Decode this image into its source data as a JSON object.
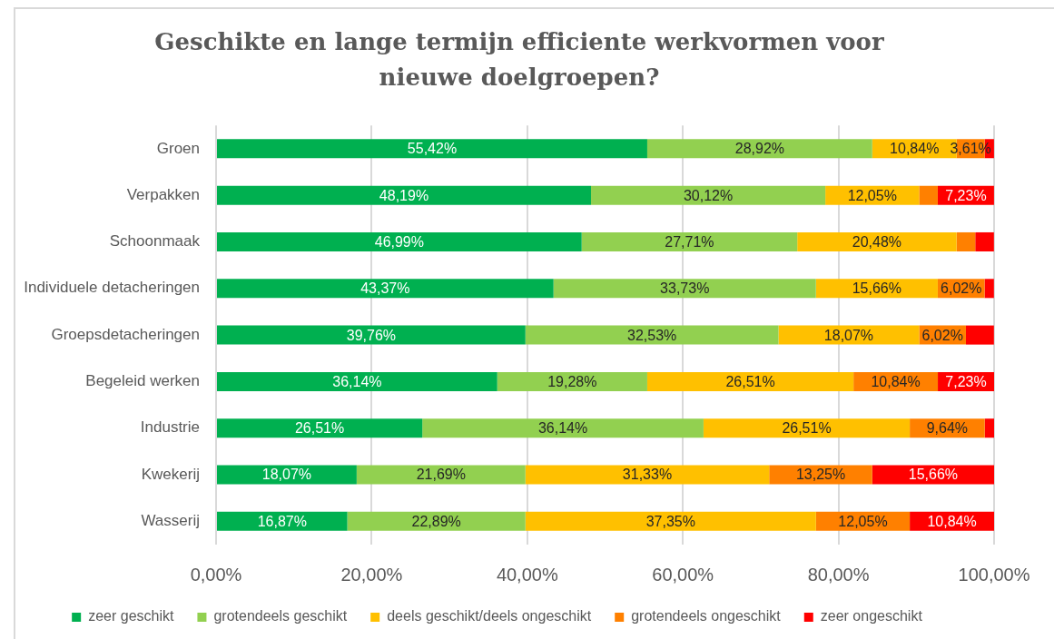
{
  "chart_data": {
    "type": "bar",
    "orientation": "horizontal",
    "stacked": true,
    "title": "Geschikte en lange termijn efficiente werkvormen voor nieuwe doelgroepen?",
    "categories": [
      "Groen",
      "Verpakken",
      "Schoonmaak",
      "Individuele detacheringen",
      "Groepsdetacheringen",
      "Begeleid werken",
      "Industrie",
      "Kwekerij",
      "Wasserij"
    ],
    "series": [
      {
        "name": "zeer geschikt",
        "color": "#00b050",
        "values": [
          55.42,
          48.19,
          46.99,
          43.37,
          39.76,
          36.14,
          26.51,
          18.07,
          16.87
        ],
        "value_labels": [
          "55,42%",
          "48,19%",
          "46,99%",
          "43,37%",
          "39,76%",
          "36,14%",
          "26,51%",
          "18,07%",
          "16,87%"
        ]
      },
      {
        "name": "grotendeels geschikt",
        "color": "#92d050",
        "values": [
          28.92,
          30.12,
          27.71,
          33.73,
          32.53,
          19.28,
          36.14,
          21.69,
          22.89
        ],
        "value_labels": [
          "28,92%",
          "30,12%",
          "27,71%",
          "33,73%",
          "32,53%",
          "19,28%",
          "36,14%",
          "21,69%",
          "22,89%"
        ]
      },
      {
        "name": "deels geschikt/deels ongeschikt",
        "color": "#ffc000",
        "values": [
          10.84,
          12.05,
          20.48,
          15.66,
          18.07,
          26.51,
          26.51,
          31.33,
          37.35
        ],
        "value_labels": [
          "10,84%",
          "12,05%",
          "20,48%",
          "15,66%",
          "18,07%",
          "26,51%",
          "26,51%",
          "31,33%",
          "37,35%"
        ]
      },
      {
        "name": "grotendeels ongeschikt",
        "color": "#ff8000",
        "values": [
          3.61,
          2.4,
          2.4,
          6.02,
          6.02,
          10.84,
          9.64,
          13.25,
          12.05
        ],
        "value_labels": [
          "3,61%",
          null,
          null,
          "6,02%",
          "6,02%",
          "10,84%",
          "9,64%",
          "13,25%",
          "12,05%"
        ]
      },
      {
        "name": "zeer ongeschikt",
        "color": "#ff0000",
        "values": [
          1.2,
          7.23,
          2.4,
          1.2,
          3.6,
          7.23,
          1.2,
          15.66,
          10.84
        ],
        "value_labels": [
          null,
          "7,23%",
          null,
          null,
          null,
          "7,23%",
          null,
          "15,66%",
          "10,84%"
        ]
      }
    ],
    "xlim": [
      0,
      100
    ],
    "xticks": [
      {
        "value": 0,
        "label": "0,00%"
      },
      {
        "value": 20,
        "label": "20,00%"
      },
      {
        "value": 40,
        "label": "40,00%"
      },
      {
        "value": 60,
        "label": "60,00%"
      },
      {
        "value": 80,
        "label": "80,00%"
      },
      {
        "value": 100,
        "label": "100,00%"
      }
    ],
    "grid": "x",
    "legend": "bottom"
  }
}
